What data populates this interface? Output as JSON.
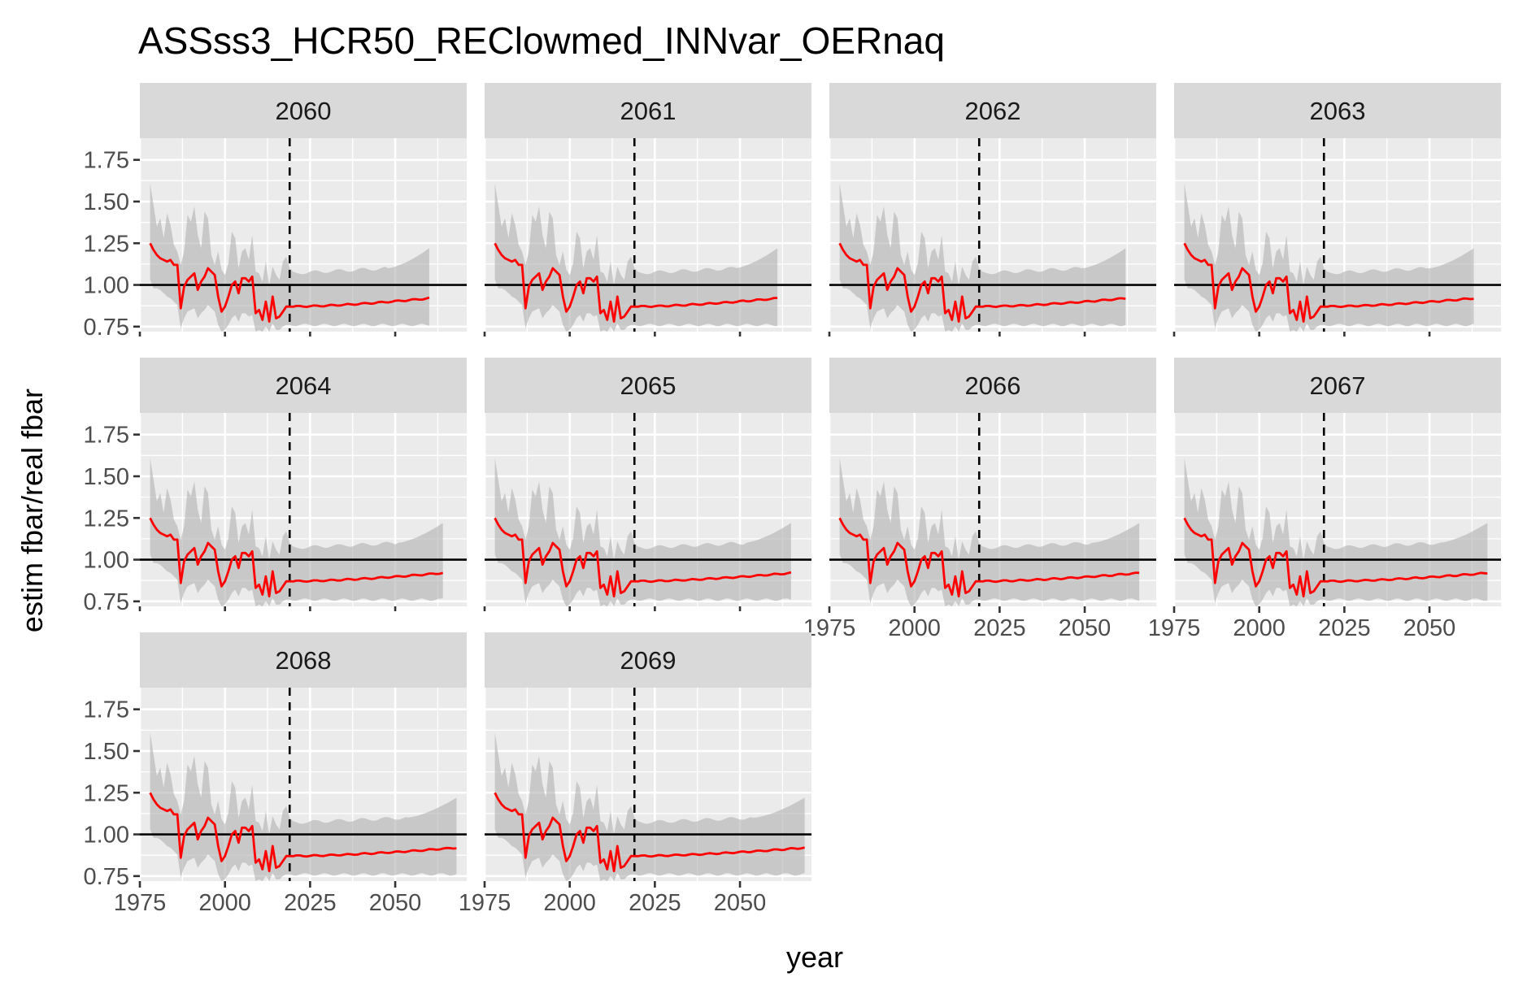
{
  "chart_data": {
    "type": "line",
    "title": "ASSss3_HCR50_REClowmed_INNvar_OERnaq",
    "xlabel": "year",
    "ylabel": "estim fbar/real fbar",
    "xlim": [
      1975,
      2071
    ],
    "ylim": [
      0.72,
      1.88
    ],
    "x_ticks": [
      1975,
      2000,
      2025,
      2050
    ],
    "x_tick_labels": [
      "1975",
      "2000",
      "2025",
      "2050"
    ],
    "y_ticks": [
      0.75,
      1.0,
      1.25,
      1.5,
      1.75
    ],
    "y_tick_labels": [
      "0.75",
      "1.00",
      "1.25",
      "1.50",
      "1.75"
    ],
    "grid": true,
    "hline_y": 1.0,
    "vline_x": 2019,
    "colors": {
      "line": "#ff0000",
      "band": "#b3b3b3",
      "panel_background": "#ebebeb",
      "strip_background": "#d9d9d9"
    },
    "base_years": [
      1978,
      1979,
      1980,
      1981,
      1982,
      1983,
      1984,
      1985,
      1986,
      1987,
      1988,
      1989,
      1990,
      1991,
      1992,
      1993,
      1994,
      1995,
      1996,
      1997,
      1998,
      1999,
      2000,
      2001,
      2002,
      2003,
      2004,
      2005,
      2006,
      2007,
      2008,
      2009,
      2010,
      2011,
      2012,
      2013,
      2014,
      2015,
      2016,
      2017,
      2018,
      2019
    ],
    "base_median": [
      1.25,
      1.21,
      1.18,
      1.16,
      1.15,
      1.14,
      1.15,
      1.12,
      1.12,
      0.86,
      0.99,
      1.03,
      1.05,
      1.07,
      0.97,
      1.02,
      1.05,
      1.1,
      1.08,
      1.06,
      0.93,
      0.84,
      0.87,
      0.93,
      1.0,
      1.02,
      0.95,
      1.04,
      1.04,
      1.02,
      1.05,
      0.83,
      0.85,
      0.79,
      0.9,
      0.78,
      0.93,
      0.8,
      0.81,
      0.84,
      0.87,
      0.87
    ],
    "base_upper": [
      1.61,
      1.48,
      1.35,
      1.4,
      1.28,
      1.43,
      1.36,
      1.24,
      1.2,
      1.12,
      1.2,
      1.42,
      1.38,
      1.47,
      1.3,
      1.22,
      1.44,
      1.4,
      1.18,
      1.12,
      1.2,
      1.09,
      1.06,
      1.13,
      1.32,
      1.28,
      1.1,
      1.2,
      1.22,
      1.15,
      1.3,
      1.08,
      1.07,
      1.02,
      1.14,
      1.0,
      1.11,
      1.06,
      1.03,
      1.14,
      1.17,
      1.1
    ],
    "base_lower": [
      1.03,
      0.98,
      0.98,
      0.97,
      0.95,
      0.93,
      0.92,
      0.9,
      0.88,
      0.74,
      0.8,
      0.84,
      0.85,
      0.86,
      0.8,
      0.83,
      0.85,
      0.88,
      0.86,
      0.84,
      0.76,
      0.72,
      0.73,
      0.76,
      0.8,
      0.82,
      0.78,
      0.83,
      0.83,
      0.81,
      0.82,
      0.72,
      0.73,
      0.72,
      0.75,
      0.72,
      0.77,
      0.73,
      0.73,
      0.75,
      0.76,
      0.76
    ],
    "projection_median_start": 0.87,
    "projection_median_end": 0.92,
    "projection_upper_start": 1.07,
    "projection_upper_plateau": 1.1,
    "projection_upper_end": 1.22,
    "projection_lower_start": 0.76,
    "projection_lower_end": 0.76,
    "facets": [
      {
        "label": "2060",
        "end_year": 2060
      },
      {
        "label": "2061",
        "end_year": 2061
      },
      {
        "label": "2062",
        "end_year": 2062
      },
      {
        "label": "2063",
        "end_year": 2063
      },
      {
        "label": "2064",
        "end_year": 2064
      },
      {
        "label": "2065",
        "end_year": 2065
      },
      {
        "label": "2066",
        "end_year": 2066
      },
      {
        "label": "2067",
        "end_year": 2067
      },
      {
        "label": "2068",
        "end_year": 2068
      },
      {
        "label": "2069",
        "end_year": 2069
      }
    ]
  }
}
